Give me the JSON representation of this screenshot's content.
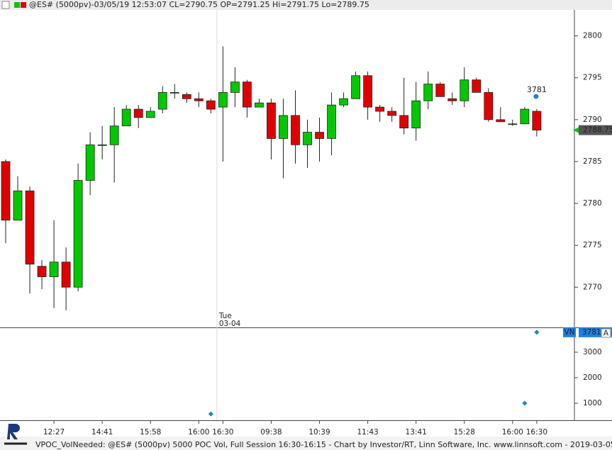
{
  "chart_data": [
    {
      "type": "candlestick",
      "title": "@ES# (5000pv)-03/05/19 12:53:07 CL=2790.75 OP=2791.25 Hi=2791.75 Lo=2789.75",
      "categories": [
        null,
        null,
        null,
        null,
        "12:27",
        null,
        null,
        null,
        "14:41",
        null,
        null,
        null,
        "15:58",
        null,
        null,
        null,
        "16:00",
        null,
        "16:30",
        null,
        null,
        null,
        "09:38",
        null,
        null,
        null,
        "10:39",
        null,
        null,
        null,
        "11:43",
        null,
        null,
        null,
        "13:41",
        null,
        null,
        null,
        "15:28",
        null,
        null,
        null,
        "16:00",
        null,
        "16:30"
      ],
      "open": [
        2785,
        2778,
        2781.5,
        2772.5,
        2771.25,
        2773,
        2770,
        2782.75,
        2787,
        2787,
        2789.25,
        2791.25,
        2790.25,
        2791.25,
        2793.25,
        2793,
        2792.5,
        2792.25,
        2791.5,
        2793.25,
        2794.5,
        2791.5,
        2792,
        2787.75,
        2790.5,
        2787,
        2788.5,
        2787.75,
        2791.75,
        2792.5,
        2795.25,
        2791.5,
        2791,
        2790.5,
        2789,
        2792.25,
        2794.25,
        2792.5,
        2792.25,
        2794.75,
        2793.25,
        2790,
        2789.5,
        2789.5,
        2791
      ],
      "high": [
        2785.25,
        2783.25,
        2782,
        2773.25,
        2778,
        2774.75,
        2784.75,
        2788.5,
        2789.25,
        2791.5,
        2791.75,
        2791.75,
        2791.5,
        2794,
        2794.25,
        2793.25,
        2793.25,
        2792.5,
        2798.75,
        2796.25,
        2794.75,
        2792.5,
        2792.5,
        2792.5,
        2793.5,
        2790,
        2790.25,
        2793.25,
        2793.25,
        2795.75,
        2795.75,
        2791.75,
        2791.5,
        2795,
        2794.5,
        2795.75,
        2794.5,
        2793.25,
        2796.25,
        2795,
        2793.75,
        2791.5,
        2790,
        2791.5,
        2791.25
      ],
      "low": [
        2775.25,
        2778,
        2769.25,
        2769.75,
        2767.5,
        2767.25,
        2769.5,
        2781,
        2785.25,
        2782.5,
        2789.25,
        2789,
        2790.25,
        2790.75,
        2792.5,
        2792,
        2791.5,
        2790.75,
        2785,
        2791.5,
        2790.25,
        2791.5,
        2785.25,
        2783,
        2784.75,
        2784.25,
        2785,
        2785.75,
        2791.5,
        2792.5,
        2790,
        2789.75,
        2789.75,
        2788.25,
        2787.5,
        2791.25,
        2792.75,
        2791.75,
        2791.5,
        2793.25,
        2789.75,
        2789.75,
        2789.25,
        2789.5,
        2788
      ],
      "close": [
        2778,
        2781.5,
        2772.75,
        2771.25,
        2773,
        2770,
        2782.75,
        2787,
        2787,
        2789.25,
        2791.25,
        2790.25,
        2791,
        2793.25,
        2793.25,
        2792.5,
        2792.25,
        2791.25,
        2793.25,
        2794.5,
        2791.5,
        2792,
        2787.75,
        2790.5,
        2787,
        2788.5,
        2787.75,
        2791.75,
        2792.5,
        2795.25,
        2791.5,
        2791,
        2790.5,
        2789,
        2792.25,
        2794.25,
        2792.75,
        2792.25,
        2794.75,
        2793.25,
        2790,
        2789.75,
        2789.5,
        2791.25,
        2788.75
      ],
      "up_color": "#00c800",
      "down_color": "#e00000",
      "ylim": [
        2765.2,
        2803.1
      ],
      "yticks": [
        2770,
        2775,
        2780,
        2785,
        2790,
        2795,
        2800
      ],
      "session": {
        "day": "Tue",
        "date": "03-04"
      }
    },
    {
      "type": "scatter",
      "series": [
        {
          "name": "VN",
          "color": "#1e7fe0",
          "values": [
            null,
            null,
            null,
            null,
            null,
            null,
            null,
            null,
            null,
            null,
            null,
            null,
            null,
            null,
            null,
            null,
            null,
            580,
            null,
            null,
            null,
            null,
            null,
            null,
            null,
            null,
            null,
            null,
            null,
            null,
            null,
            null,
            null,
            null,
            null,
            null,
            null,
            null,
            null,
            null,
            null,
            null,
            null,
            1000,
            3781
          ]
        }
      ],
      "ylim": [
        333,
        3944
      ],
      "yticks": [
        1000,
        2000,
        3000
      ],
      "button": "A"
    }
  ],
  "footer": "VPOC_VolNeeded: @ES# (5000pv) 5000 POC Vol, Full Session 16:30-16:15 - Chart by Investor/RT, Linn Software, Inc. www.linnsoft.com - 2019-03-05 17:17:30"
}
